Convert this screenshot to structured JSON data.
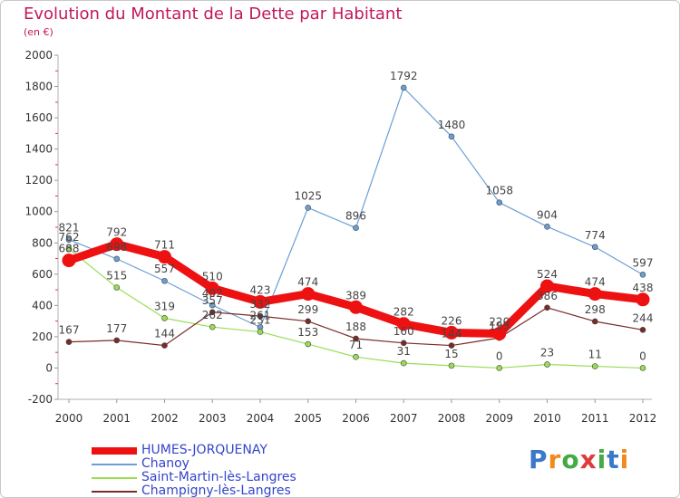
{
  "title": "Evolution du Montant de la Dette par Habitant",
  "subtitle": "(en €)",
  "logo_text": "Proxiti",
  "chart_data": {
    "type": "line",
    "title": "Evolution du Montant de la Dette par Habitant",
    "subtitle": "(en €)",
    "xlabel": "",
    "ylabel": "",
    "x": [
      2000,
      2001,
      2002,
      2003,
      2004,
      2005,
      2006,
      2007,
      2008,
      2009,
      2010,
      2011,
      2012
    ],
    "y_ticks": [
      -200,
      0,
      200,
      400,
      600,
      800,
      1000,
      1200,
      1400,
      1600,
      1800,
      2000
    ],
    "ylim": [
      -200,
      2000
    ],
    "grid": false,
    "legend_position": "bottom-left",
    "series": [
      {
        "name": "HUMES-JORQUENAY",
        "color": "#ee1111",
        "values": [
          688,
          792,
          711,
          510,
          423,
          474,
          389,
          282,
          226,
          220,
          524,
          474,
          438
        ]
      },
      {
        "name": "Chanoy",
        "color": "#6a9fd4",
        "values": [
          821,
          698,
          557,
          402,
          261,
          1025,
          896,
          1792,
          1480,
          1058,
          904,
          774,
          597
        ]
      },
      {
        "name": "Saint-Martin-lès-Langres",
        "color": "#99dd55",
        "values": [
          762,
          515,
          319,
          262,
          231,
          153,
          71,
          31,
          15,
          0,
          23,
          11,
          0
        ]
      },
      {
        "name": "Champigny-lès-Langres",
        "color": "#7a2a2a",
        "values": [
          167,
          177,
          144,
          357,
          332,
          299,
          188,
          160,
          144,
          193,
          386,
          298,
          244
        ]
      }
    ]
  }
}
